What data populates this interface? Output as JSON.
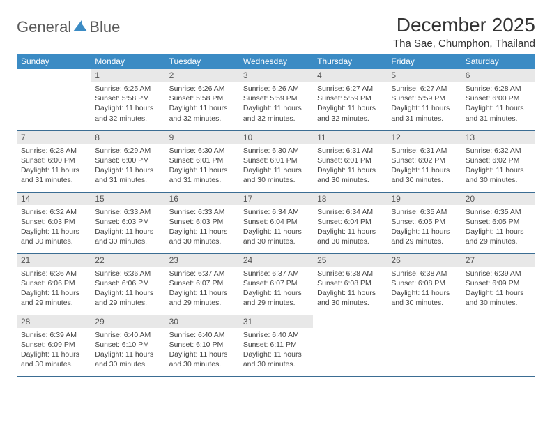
{
  "brand": {
    "name_part1": "General",
    "name_part2": "Blue"
  },
  "title": "December 2025",
  "location": "Tha Sae, Chumphon, Thailand",
  "colors": {
    "header_bg": "#3b8bc4",
    "header_fg": "#ffffff",
    "daynum_bg": "#e8e8e8",
    "row_border": "#3b6d93",
    "logo_text": "#5a5a5a",
    "logo_icon": "#3b8bc4",
    "body_text": "#444444"
  },
  "typography": {
    "title_fontsize": 28,
    "location_fontsize": 15,
    "header_fontsize": 12,
    "daynum_fontsize": 12,
    "cell_fontsize": 10.5
  },
  "day_headers": [
    "Sunday",
    "Monday",
    "Tuesday",
    "Wednesday",
    "Thursday",
    "Friday",
    "Saturday"
  ],
  "labels": {
    "sunrise": "Sunrise:",
    "sunset": "Sunset:",
    "daylight": "Daylight:"
  },
  "weeks": [
    [
      null,
      {
        "n": "1",
        "sunrise": "6:25 AM",
        "sunset": "5:58 PM",
        "daylight": "11 hours and 32 minutes."
      },
      {
        "n": "2",
        "sunrise": "6:26 AM",
        "sunset": "5:58 PM",
        "daylight": "11 hours and 32 minutes."
      },
      {
        "n": "3",
        "sunrise": "6:26 AM",
        "sunset": "5:59 PM",
        "daylight": "11 hours and 32 minutes."
      },
      {
        "n": "4",
        "sunrise": "6:27 AM",
        "sunset": "5:59 PM",
        "daylight": "11 hours and 32 minutes."
      },
      {
        "n": "5",
        "sunrise": "6:27 AM",
        "sunset": "5:59 PM",
        "daylight": "11 hours and 31 minutes."
      },
      {
        "n": "6",
        "sunrise": "6:28 AM",
        "sunset": "6:00 PM",
        "daylight": "11 hours and 31 minutes."
      }
    ],
    [
      {
        "n": "7",
        "sunrise": "6:28 AM",
        "sunset": "6:00 PM",
        "daylight": "11 hours and 31 minutes."
      },
      {
        "n": "8",
        "sunrise": "6:29 AM",
        "sunset": "6:00 PM",
        "daylight": "11 hours and 31 minutes."
      },
      {
        "n": "9",
        "sunrise": "6:30 AM",
        "sunset": "6:01 PM",
        "daylight": "11 hours and 31 minutes."
      },
      {
        "n": "10",
        "sunrise": "6:30 AM",
        "sunset": "6:01 PM",
        "daylight": "11 hours and 30 minutes."
      },
      {
        "n": "11",
        "sunrise": "6:31 AM",
        "sunset": "6:01 PM",
        "daylight": "11 hours and 30 minutes."
      },
      {
        "n": "12",
        "sunrise": "6:31 AM",
        "sunset": "6:02 PM",
        "daylight": "11 hours and 30 minutes."
      },
      {
        "n": "13",
        "sunrise": "6:32 AM",
        "sunset": "6:02 PM",
        "daylight": "11 hours and 30 minutes."
      }
    ],
    [
      {
        "n": "14",
        "sunrise": "6:32 AM",
        "sunset": "6:03 PM",
        "daylight": "11 hours and 30 minutes."
      },
      {
        "n": "15",
        "sunrise": "6:33 AM",
        "sunset": "6:03 PM",
        "daylight": "11 hours and 30 minutes."
      },
      {
        "n": "16",
        "sunrise": "6:33 AM",
        "sunset": "6:03 PM",
        "daylight": "11 hours and 30 minutes."
      },
      {
        "n": "17",
        "sunrise": "6:34 AM",
        "sunset": "6:04 PM",
        "daylight": "11 hours and 30 minutes."
      },
      {
        "n": "18",
        "sunrise": "6:34 AM",
        "sunset": "6:04 PM",
        "daylight": "11 hours and 30 minutes."
      },
      {
        "n": "19",
        "sunrise": "6:35 AM",
        "sunset": "6:05 PM",
        "daylight": "11 hours and 29 minutes."
      },
      {
        "n": "20",
        "sunrise": "6:35 AM",
        "sunset": "6:05 PM",
        "daylight": "11 hours and 29 minutes."
      }
    ],
    [
      {
        "n": "21",
        "sunrise": "6:36 AM",
        "sunset": "6:06 PM",
        "daylight": "11 hours and 29 minutes."
      },
      {
        "n": "22",
        "sunrise": "6:36 AM",
        "sunset": "6:06 PM",
        "daylight": "11 hours and 29 minutes."
      },
      {
        "n": "23",
        "sunrise": "6:37 AM",
        "sunset": "6:07 PM",
        "daylight": "11 hours and 29 minutes."
      },
      {
        "n": "24",
        "sunrise": "6:37 AM",
        "sunset": "6:07 PM",
        "daylight": "11 hours and 29 minutes."
      },
      {
        "n": "25",
        "sunrise": "6:38 AM",
        "sunset": "6:08 PM",
        "daylight": "11 hours and 30 minutes."
      },
      {
        "n": "26",
        "sunrise": "6:38 AM",
        "sunset": "6:08 PM",
        "daylight": "11 hours and 30 minutes."
      },
      {
        "n": "27",
        "sunrise": "6:39 AM",
        "sunset": "6:09 PM",
        "daylight": "11 hours and 30 minutes."
      }
    ],
    [
      {
        "n": "28",
        "sunrise": "6:39 AM",
        "sunset": "6:09 PM",
        "daylight": "11 hours and 30 minutes."
      },
      {
        "n": "29",
        "sunrise": "6:40 AM",
        "sunset": "6:10 PM",
        "daylight": "11 hours and 30 minutes."
      },
      {
        "n": "30",
        "sunrise": "6:40 AM",
        "sunset": "6:10 PM",
        "daylight": "11 hours and 30 minutes."
      },
      {
        "n": "31",
        "sunrise": "6:40 AM",
        "sunset": "6:11 PM",
        "daylight": "11 hours and 30 minutes."
      },
      null,
      null,
      null
    ]
  ]
}
